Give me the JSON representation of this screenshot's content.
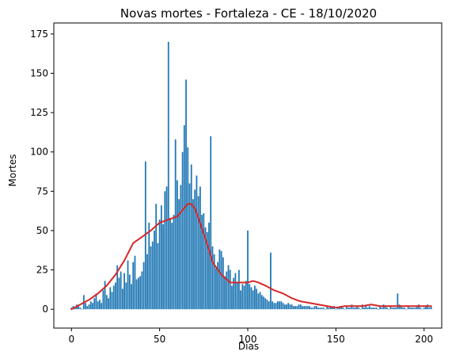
{
  "chart_data": {
    "type": "bar",
    "title": "Novas mortes - Fortaleza - CE - 18/10/2020",
    "xlabel": "Dias",
    "ylabel": "Mortes",
    "xlim": [
      -10,
      210
    ],
    "ylim": [
      -12,
      182
    ],
    "xticks": [
      0,
      50,
      100,
      150,
      200
    ],
    "yticks": [
      0,
      25,
      50,
      75,
      100,
      125,
      150,
      175
    ],
    "grid": false,
    "legend": "none",
    "colors": {
      "bars": "#1f77b4",
      "trend": "#d62728"
    },
    "series": [
      {
        "values": [
          1,
          2,
          1,
          3,
          2,
          1,
          0,
          9,
          4,
          2,
          3,
          5,
          4,
          7,
          10,
          5,
          6,
          4,
          12,
          18,
          9,
          7,
          14,
          11,
          15,
          17,
          28,
          20,
          24,
          13,
          23,
          17,
          31,
          22,
          16,
          30,
          34,
          19,
          20,
          21,
          24,
          30,
          94,
          35,
          55,
          40,
          43,
          50,
          67,
          42,
          57,
          66,
          54,
          75,
          78,
          170,
          58,
          55,
          60,
          108,
          82,
          70,
          79,
          100,
          117,
          146,
          103,
          80,
          92,
          70,
          76,
          85,
          72,
          78,
          60,
          61,
          52,
          49,
          55,
          110,
          40,
          35,
          26,
          30,
          38,
          37,
          33,
          21,
          24,
          28,
          25,
          15,
          20,
          23,
          17,
          25,
          12,
          16,
          15,
          18,
          50,
          16,
          14,
          12,
          15,
          13,
          10,
          11,
          9,
          8,
          7,
          6,
          5,
          36,
          5,
          4,
          4,
          5,
          5,
          5,
          4,
          3,
          3,
          4,
          3,
          3,
          2,
          2,
          2,
          3,
          3,
          2,
          2,
          2,
          2,
          2,
          1,
          1,
          2,
          2,
          1,
          1,
          1,
          1,
          0,
          2,
          1,
          2,
          1,
          2,
          0,
          1,
          1,
          2,
          1,
          0,
          2,
          1,
          1,
          3,
          1,
          1,
          2,
          1,
          0,
          3,
          1,
          2,
          1,
          2,
          1,
          1,
          1,
          1,
          0,
          2,
          1,
          3,
          2,
          1,
          0,
          2,
          1,
          1,
          1,
          10,
          3,
          2,
          1,
          1,
          0,
          2,
          1,
          1,
          1,
          1,
          2,
          3,
          1,
          0,
          1,
          2,
          3,
          1,
          2
        ],
        "name": ""
      }
    ],
    "trend_line": {
      "x": [
        0,
        5,
        10,
        15,
        20,
        25,
        30,
        35,
        40,
        45,
        50,
        55,
        60,
        63,
        66,
        68,
        70,
        72,
        75,
        78,
        80,
        85,
        90,
        95,
        100,
        103,
        106,
        110,
        115,
        120,
        125,
        130,
        135,
        140,
        145,
        150,
        155,
        160,
        165,
        170,
        175,
        180,
        185,
        190,
        195,
        200,
        204
      ],
      "y": [
        0,
        3,
        6,
        10,
        15,
        22,
        31,
        42,
        46,
        50,
        55,
        57,
        59,
        63,
        67,
        67,
        64,
        58,
        48,
        38,
        30,
        22,
        17,
        17,
        17,
        18,
        17,
        15,
        12,
        10,
        7,
        5,
        4,
        3,
        2,
        1,
        2,
        2,
        2,
        3,
        2,
        2,
        2,
        2,
        2,
        2,
        2
      ]
    }
  }
}
